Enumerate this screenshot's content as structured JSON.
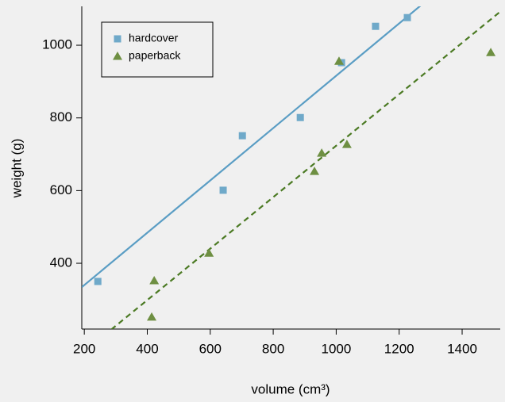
{
  "chart_data": {
    "type": "scatter",
    "xlabel": "volume (cm³)",
    "ylabel": "weight (g)",
    "xlim": [
      192,
      1521
    ],
    "ylim": [
      219,
      1107
    ],
    "xticks": [
      200,
      400,
      600,
      800,
      1000,
      1200,
      1400
    ],
    "yticks": [
      400,
      600,
      800,
      1000
    ],
    "legend": "top-left",
    "series": [
      {
        "name": "hardcover",
        "color": "#6fa9c9",
        "marker": "square",
        "x": [
          243,
          641,
          702,
          886,
          1017,
          1125,
          1226
        ],
        "values": [
          350,
          601,
          751,
          801,
          952,
          1052,
          1076
        ],
        "fit": {
          "intercept": 196,
          "slope": 0.72,
          "color": "#5a9dc4",
          "dash": false
        }
      },
      {
        "name": "paperback",
        "color": "#6e8f42",
        "marker": "triangle",
        "x": [
          414,
          422,
          596,
          931,
          954,
          1009,
          1034,
          1491
        ],
        "values": [
          252,
          352,
          428,
          653,
          703,
          956,
          727,
          980
        ],
        "fit": {
          "intercept": 15.5,
          "slope": 0.708,
          "color": "#4b7a23",
          "dash": true
        }
      }
    ]
  }
}
